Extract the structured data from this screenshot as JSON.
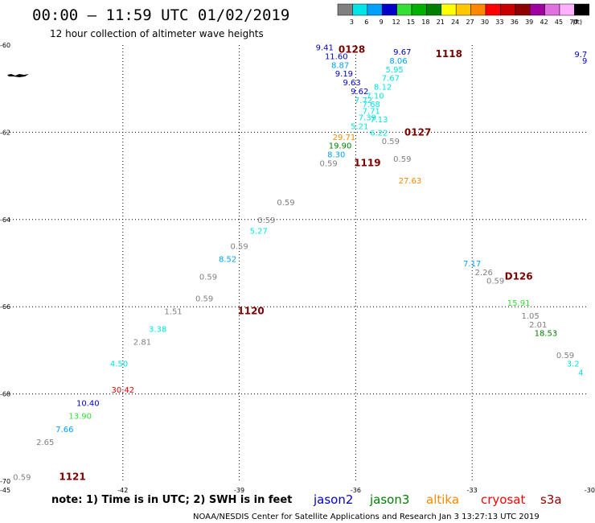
{
  "header": {
    "title": "00:00 – 11:59 UTC 01/02/2019",
    "subtitle": "12 hour collection of altimeter wave heights"
  },
  "legend": {
    "unit": "(ft)",
    "bins": [
      {
        "label": "3",
        "color": "#808080"
      },
      {
        "label": "6",
        "color": "#00e5e5"
      },
      {
        "label": "9",
        "color": "#00a0ff"
      },
      {
        "label": "12",
        "color": "#0000c8"
      },
      {
        "label": "15",
        "color": "#33e033"
      },
      {
        "label": "18",
        "color": "#00b000"
      },
      {
        "label": "21",
        "color": "#008000"
      },
      {
        "label": "24",
        "color": "#ffff00"
      },
      {
        "label": "27",
        "color": "#ffc800"
      },
      {
        "label": "30",
        "color": "#ff8800"
      },
      {
        "label": "33",
        "color": "#ff0000"
      },
      {
        "label": "36",
        "color": "#c80000"
      },
      {
        "label": "39",
        "color": "#900000"
      },
      {
        "label": "42",
        "color": "#a000a0"
      },
      {
        "label": "45",
        "color": "#e070e0"
      },
      {
        "label": "70",
        "color": "#ffb0ff"
      },
      {
        "label": "",
        "color": "#000000"
      }
    ]
  },
  "footer": {
    "note": "note: 1) Time is in UTC; 2) SWH is in feet",
    "missions": [
      {
        "name": "jason2",
        "color": "#0000c8"
      },
      {
        "name": "jason3",
        "color": "#008000"
      },
      {
        "name": "altika",
        "color": "#ff8800"
      },
      {
        "name": "cryosat",
        "color": "#ff0000"
      },
      {
        "name": "s3a",
        "color": "#900000"
      }
    ],
    "credit": "NOAA/NESDIS Center for Satellite Applications and Research    Jan  3 13:27:13 UTC 2019"
  },
  "chart_data": {
    "type": "scatter",
    "xlabel": "",
    "ylabel": "",
    "xlim": [
      -45,
      -30
    ],
    "ylim": [
      -70,
      -60
    ],
    "x_ticks": [
      "-45",
      "-42",
      "-39",
      "-36",
      "-33",
      "-30"
    ],
    "y_ticks": [
      {
        "lat": -60,
        "label": "-60"
      },
      {
        "lat": -62,
        "label": "-62"
      },
      {
        "lat": -64,
        "label": "-64"
      },
      {
        "lat": -66,
        "label": "-66"
      },
      {
        "lat": -68,
        "label": "-68"
      },
      {
        "lat": -70,
        "label": "-70"
      }
    ],
    "grid": true,
    "pass_labels": [
      {
        "text": "0128",
        "lon": -36.1,
        "lat": -60.1
      },
      {
        "text": "1118",
        "lon": -33.6,
        "lat": -60.2
      },
      {
        "text": "0127",
        "lon": -34.4,
        "lat": -62.0
      },
      {
        "text": "1119",
        "lon": -35.7,
        "lat": -62.7
      },
      {
        "text": "D126",
        "lon": -31.8,
        "lat": -65.3
      },
      {
        "text": "1120",
        "lon": -38.7,
        "lat": -66.1
      },
      {
        "text": "1121",
        "lon": -43.3,
        "lat": -69.9
      }
    ],
    "points": [
      {
        "lon": -36.8,
        "lat": -60.05,
        "value": "9.41",
        "color": "#0000c8"
      },
      {
        "lon": -36.5,
        "lat": -60.25,
        "value": "11.60",
        "color": "#0000c8"
      },
      {
        "lon": -36.4,
        "lat": -60.45,
        "value": "8.87",
        "color": "#00a0ff"
      },
      {
        "lon": -36.3,
        "lat": -60.65,
        "value": "9.19",
        "color": "#0000c8"
      },
      {
        "lon": -36.1,
        "lat": -60.85,
        "value": "9.63",
        "color": "#0000c8"
      },
      {
        "lon": -35.9,
        "lat": -61.05,
        "value": "9.62",
        "color": "#0000c8"
      },
      {
        "lon": -34.8,
        "lat": -60.15,
        "value": "9.67",
        "color": "#0000c8"
      },
      {
        "lon": -34.9,
        "lat": -60.35,
        "value": "8.06",
        "color": "#00a0ff"
      },
      {
        "lon": -35.0,
        "lat": -60.55,
        "value": "5.95",
        "color": "#00e5e5"
      },
      {
        "lon": -35.1,
        "lat": -60.75,
        "value": "7.67",
        "color": "#00e5e5"
      },
      {
        "lon": -35.3,
        "lat": -60.95,
        "value": "8.12",
        "color": "#00e5e5"
      },
      {
        "lon": -35.5,
        "lat": -61.15,
        "value": "7.10",
        "color": "#00e5e5"
      },
      {
        "lon": -35.8,
        "lat": -61.25,
        "value": "7.72",
        "color": "#00e5e5"
      },
      {
        "lon": -35.6,
        "lat": -61.35,
        "value": "7.68",
        "color": "#00e5e5"
      },
      {
        "lon": -35.6,
        "lat": -61.5,
        "value": "7.71",
        "color": "#00e5e5"
      },
      {
        "lon": -35.7,
        "lat": -61.65,
        "value": "7.39",
        "color": "#00e5e5"
      },
      {
        "lon": -35.4,
        "lat": -61.7,
        "value": "7.13",
        "color": "#00e5e5"
      },
      {
        "lon": -35.9,
        "lat": -61.85,
        "value": "5.21",
        "color": "#00e5e5"
      },
      {
        "lon": -35.4,
        "lat": -62.0,
        "value": "6.22",
        "color": "#00e5e5"
      },
      {
        "lon": -36.3,
        "lat": -62.1,
        "value": "29.71",
        "color": "#ff8800"
      },
      {
        "lon": -35.1,
        "lat": -62.2,
        "value": "0.59",
        "color": "#808080"
      },
      {
        "lon": -36.4,
        "lat": -62.3,
        "value": "19.90",
        "color": "#008000"
      },
      {
        "lon": -36.5,
        "lat": -62.5,
        "value": "8.30",
        "color": "#00a0ff"
      },
      {
        "lon": -34.8,
        "lat": -62.6,
        "value": "0.59",
        "color": "#808080"
      },
      {
        "lon": -36.7,
        "lat": -62.7,
        "value": "0.59",
        "color": "#808080"
      },
      {
        "lon": -34.6,
        "lat": -63.1,
        "value": "27.63",
        "color": "#ff8800"
      },
      {
        "lon": -37.8,
        "lat": -63.6,
        "value": "0.59",
        "color": "#808080"
      },
      {
        "lon": -38.3,
        "lat": -64.0,
        "value": "0.59",
        "color": "#808080"
      },
      {
        "lon": -38.5,
        "lat": -64.25,
        "value": "5.27",
        "color": "#00e5e5"
      },
      {
        "lon": -39.0,
        "lat": -64.6,
        "value": "0.59",
        "color": "#808080"
      },
      {
        "lon": -39.3,
        "lat": -64.9,
        "value": "8.52",
        "color": "#00a0ff"
      },
      {
        "lon": -39.8,
        "lat": -65.3,
        "value": "0.59",
        "color": "#808080"
      },
      {
        "lon": -39.9,
        "lat": -65.8,
        "value": "0.59",
        "color": "#808080"
      },
      {
        "lon": -40.7,
        "lat": -66.1,
        "value": "1.51",
        "color": "#808080"
      },
      {
        "lon": -41.1,
        "lat": -66.5,
        "value": "3.38",
        "color": "#00e5e5"
      },
      {
        "lon": -41.5,
        "lat": -66.8,
        "value": "2.81",
        "color": "#808080"
      },
      {
        "lon": -42.1,
        "lat": -67.3,
        "value": "4.50",
        "color": "#00e5e5"
      },
      {
        "lon": -42.0,
        "lat": -67.9,
        "value": "30.42",
        "color": "#ff0000"
      },
      {
        "lon": -42.9,
        "lat": -68.2,
        "value": "10.40",
        "color": "#0000c8"
      },
      {
        "lon": -43.1,
        "lat": -68.5,
        "value": "13.90",
        "color": "#33e033"
      },
      {
        "lon": -43.5,
        "lat": -68.8,
        "value": "7.66",
        "color": "#00a0ff"
      },
      {
        "lon": -44.0,
        "lat": -69.1,
        "value": "2.65",
        "color": "#808080"
      },
      {
        "lon": -44.6,
        "lat": -69.9,
        "value": "0.59",
        "color": "#808080"
      },
      {
        "lon": -33.0,
        "lat": -65.0,
        "value": "7.17",
        "color": "#00a0ff"
      },
      {
        "lon": -32.7,
        "lat": -65.2,
        "value": "2.26",
        "color": "#808080"
      },
      {
        "lon": -32.4,
        "lat": -65.4,
        "value": "0.59",
        "color": "#808080"
      },
      {
        "lon": -31.8,
        "lat": -65.9,
        "value": "15.91",
        "color": "#33e033"
      },
      {
        "lon": -31.5,
        "lat": -66.2,
        "value": "1.05",
        "color": "#808080"
      },
      {
        "lon": -31.3,
        "lat": -66.4,
        "value": "2.01",
        "color": "#808080"
      },
      {
        "lon": -31.1,
        "lat": -66.6,
        "value": "18.53",
        "color": "#008000"
      },
      {
        "lon": -30.6,
        "lat": -67.1,
        "value": "0.59",
        "color": "#808080"
      },
      {
        "lon": -30.4,
        "lat": -67.3,
        "value": "3.2",
        "color": "#00e5e5"
      },
      {
        "lon": -30.2,
        "lat": -67.5,
        "value": "4",
        "color": "#00e5e5"
      },
      {
        "lon": -30.2,
        "lat": -60.2,
        "value": "9.7",
        "color": "#0000c8"
      },
      {
        "lon": -30.1,
        "lat": -60.35,
        "value": "9",
        "color": "#0000c8"
      }
    ]
  }
}
